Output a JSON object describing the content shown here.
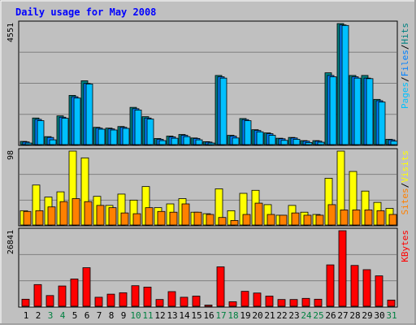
{
  "chart_data": {
    "type": "bar",
    "title": "Daily usage for May 2008",
    "colors": {
      "background": "#c0c0c0",
      "title": "#0000ff",
      "pages": "#00c0ff",
      "files": "#0080ff",
      "hits": "#008080",
      "visits": "#ffff00",
      "sites": "#ff8000",
      "kbytes": "#ff0000",
      "weekend_day": "#008040",
      "weekday": "#000000",
      "axis_label_text": "#000000"
    },
    "categories": [
      "1",
      "2",
      "3",
      "4",
      "5",
      "6",
      "7",
      "8",
      "9",
      "10",
      "11",
      "12",
      "13",
      "14",
      "15",
      "16",
      "17",
      "18",
      "19",
      "20",
      "21",
      "22",
      "23",
      "24",
      "25",
      "26",
      "27",
      "28",
      "29",
      "30",
      "31"
    ],
    "weekend_days": [
      "3",
      "4",
      "10",
      "11",
      "17",
      "18",
      "24",
      "25",
      "31"
    ],
    "panels": [
      {
        "id": "hits",
        "max_label": "4551",
        "ylim": [
          0,
          4551
        ],
        "legend": [
          "Pages",
          "/",
          "Files",
          "/",
          "Hits"
        ],
        "series": [
          {
            "name": "Hits",
            "color_key": "hits",
            "values": [
              120,
              1000,
              300,
              1080,
              1850,
              2400,
              650,
              620,
              680,
              1400,
              1050,
              230,
              320,
              380,
              250,
              110,
              2600,
              350,
              980,
              560,
              440,
              240,
              270,
              150,
              150,
              2700,
              4551,
              2600,
              2600,
              1700,
              200
            ]
          },
          {
            "name": "Files",
            "color_key": "files",
            "values": [
              100,
              950,
              270,
              1030,
              1800,
              2300,
              620,
              590,
              650,
              1350,
              1000,
              200,
              290,
              350,
              230,
              95,
              2550,
              320,
              940,
              530,
              410,
              220,
              250,
              130,
              130,
              2600,
              4500,
              2550,
              2500,
              1650,
              180
            ]
          },
          {
            "name": "Pages",
            "color_key": "pages",
            "values": [
              60,
              900,
              180,
              990,
              1750,
              2280,
              580,
              550,
              610,
              1300,
              960,
              150,
              240,
              300,
              180,
              60,
              2500,
              250,
              900,
              480,
              350,
              160,
              200,
              80,
              90,
              2550,
              4480,
              2500,
              2480,
              1600,
              130
            ]
          }
        ]
      },
      {
        "id": "visits",
        "max_label": "98",
        "ylim": [
          0,
          98
        ],
        "legend": [
          "Sites",
          "/",
          "Visits"
        ],
        "series": [
          {
            "name": "Visits",
            "color_key": "visits",
            "values": [
              19,
              53,
              37,
              44,
              98,
              89,
              38,
              26,
              41,
              33,
              51,
              23,
              28,
              35,
              17,
              15,
              48,
              19,
              42,
              46,
              27,
              13,
              26,
              17,
              14,
              62,
              98,
              71,
              45,
              30,
              22
            ]
          },
          {
            "name": "Sites",
            "color_key": "sites",
            "values": [
              18,
              19,
              24,
              31,
              35,
              31,
              26,
              23,
              16,
              15,
              23,
              18,
              17,
              28,
              17,
              14,
              10,
              6,
              14,
              29,
              14,
              13,
              16,
              13,
              13,
              27,
              20,
              20,
              20,
              19,
              14
            ]
          }
        ]
      },
      {
        "id": "kbytes",
        "max_label": "26841",
        "ylim": [
          0,
          26841
        ],
        "legend": [
          "KBytes"
        ],
        "series": [
          {
            "name": "KBytes",
            "color_key": "kbytes",
            "values": [
              2500,
              7700,
              3800,
              7200,
              9700,
              13700,
              3200,
              4300,
              4800,
              7300,
              6800,
              2400,
              5200,
              3200,
              3600,
              400,
              14000,
              1600,
              5300,
              4700,
              3600,
              2400,
              2400,
              2800,
              2500,
              14700,
              26841,
              14500,
              13000,
              10800,
              2200
            ]
          }
        ]
      }
    ]
  }
}
